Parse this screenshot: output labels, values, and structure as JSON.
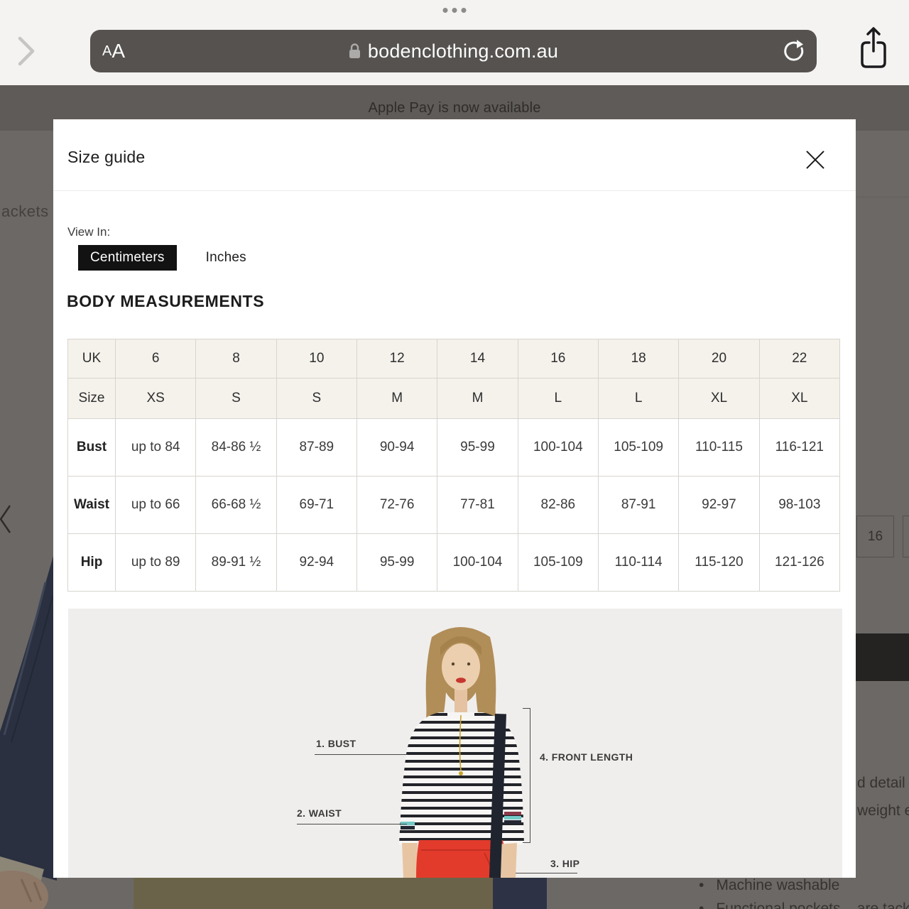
{
  "browser": {
    "reader_button": "AA",
    "address": "bodenclothing.com.au"
  },
  "page_banner": {
    "text": "Apple Pay is now available"
  },
  "background": {
    "breadcrumb_fragment": "ackets",
    "breadcrumb_slash": "/",
    "size_option": "16",
    "text_fragments": [
      "d detail",
      "weight e"
    ],
    "bullets": [
      "Machine washable",
      "Functional pockets – are tacked closed to help"
    ]
  },
  "modal": {
    "title": "Size guide",
    "view_in_label": "View In:",
    "units": [
      {
        "label": "Centimeters",
        "selected": true
      },
      {
        "label": "Inches",
        "selected": false
      }
    ],
    "section_title": "BODY MEASUREMENTS"
  },
  "size_table": {
    "rows": [
      {
        "type": "header",
        "cells": [
          "UK",
          "6",
          "8",
          "10",
          "12",
          "14",
          "16",
          "18",
          "20",
          "22"
        ]
      },
      {
        "type": "header",
        "cells": [
          "Size",
          "XS",
          "S",
          "S",
          "M",
          "M",
          "L",
          "L",
          "XL",
          "XL"
        ]
      },
      {
        "type": "data",
        "cells": [
          "Bust",
          "up to 84",
          "84-86 ½",
          "87-89",
          "90-94",
          "95-99",
          "100-104",
          "105-109",
          "110-115",
          "116-121"
        ]
      },
      {
        "type": "data",
        "cells": [
          "Waist",
          "up to 66",
          "66-68 ½",
          "69-71",
          "72-76",
          "77-81",
          "82-86",
          "87-91",
          "92-97",
          "98-103"
        ]
      },
      {
        "type": "data",
        "cells": [
          "Hip",
          "up to 89",
          "89-91 ½",
          "92-94",
          "95-99",
          "100-104",
          "105-109",
          "110-114",
          "115-120",
          "121-126"
        ]
      }
    ]
  },
  "diagram": {
    "labels": {
      "bust": "1. BUST",
      "waist": "2. WAIST",
      "hip": "3. HIP",
      "front_length": "4. FRONT LENGTH"
    }
  },
  "colors": {
    "chrome_bg": "#f4f3f1",
    "urlbar_bg": "#555250",
    "overlay_gray": "#6b6866",
    "banner_gray": "#5e5b59",
    "accent_black": "#121212",
    "table_header_bg": "#f5f2ec",
    "table_border": "#d8d5cf",
    "photo_bg": "#f0eeec",
    "khaki": "#6b6349"
  }
}
